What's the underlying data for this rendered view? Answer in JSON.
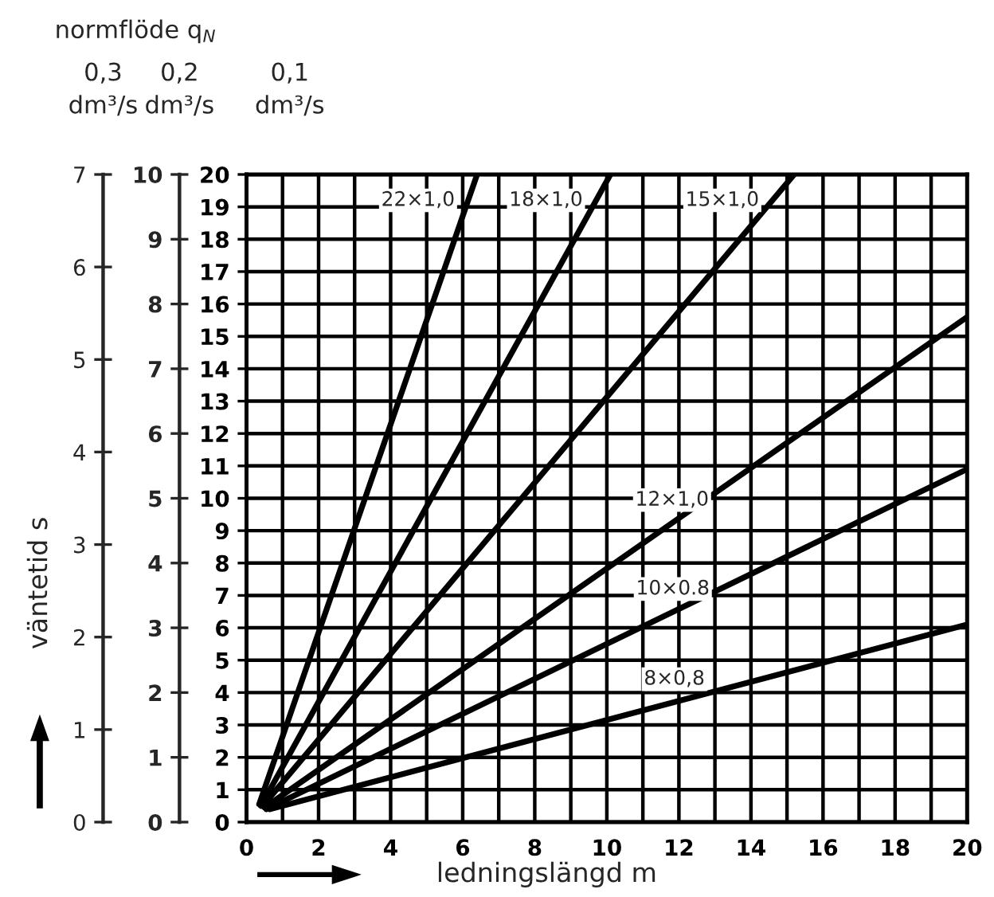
{
  "chart_data": {
    "type": "line",
    "title": "normflöde q$_{N}$",
    "xlabel": "ledningslängd m",
    "ylabel": "0,1\ndm³/s",
    "y2label": "0,2\ndm³/s",
    "y3label": "0,3\ndm³/s",
    "xlim": [
      0,
      20
    ],
    "ylim": [
      0,
      20
    ],
    "y2lim": [
      0,
      10
    ],
    "y3lim": [
      0,
      7
    ],
    "xticks": [
      0,
      {
        "value": 1,
        "label": null
      },
      2,
      {
        "value": 3,
        "label": null
      },
      4,
      {
        "value": 5,
        "label": null
      },
      6,
      {
        "value": 7,
        "label": null
      },
      8,
      {
        "value": 9,
        "label": null
      },
      10,
      {
        "value": 11,
        "label": null
      },
      12,
      {
        "value": 13,
        "label": null
      },
      14,
      {
        "value": 15,
        "label": null
      },
      16,
      {
        "value": 17,
        "label": null
      },
      18,
      {
        "value": 19,
        "label": null
      },
      20
    ],
    "yticks": [
      0,
      1,
      2,
      3,
      4,
      5,
      6,
      7,
      8,
      9,
      10,
      11,
      12,
      13,
      14,
      15,
      16,
      17,
      18,
      19,
      20
    ],
    "y2ticks": [
      0,
      1,
      2,
      3,
      4,
      5,
      6,
      7,
      8,
      9,
      10
    ],
    "y3ticks": [
      0,
      1,
      2,
      3,
      4,
      5,
      6,
      7
    ],
    "grid": true,
    "marker": "none",
    "line_style": "solid",
    "series": [
      {
        "name": "22×1,0",
        "color": "#000000",
        "x": [
          0.35,
          6.4
        ],
        "values": [
          0.55,
          20
        ]
      },
      {
        "name": "18×1,0",
        "color": "#000000",
        "x": [
          0.4,
          10.1
        ],
        "values": [
          0.5,
          20
        ]
      },
      {
        "name": "15×1,0",
        "color": "#000000",
        "x": [
          0.45,
          15.2
        ],
        "values": [
          0.5,
          20
        ]
      },
      {
        "name": "12×1,0",
        "color": "#000000",
        "x": [
          0.5,
          20
        ],
        "values": [
          0.45,
          15.6
        ]
      },
      {
        "name": "10×0.8",
        "color": "#000000",
        "x": [
          0.55,
          20
        ],
        "values": [
          0.4,
          10.9
        ]
      },
      {
        "name": "8×0,8",
        "color": "#000000",
        "x": [
          0.65,
          20
        ],
        "values": [
          0.4,
          6.1
        ]
      }
    ],
    "annotations": [
      "väntetid s"
    ]
  }
}
